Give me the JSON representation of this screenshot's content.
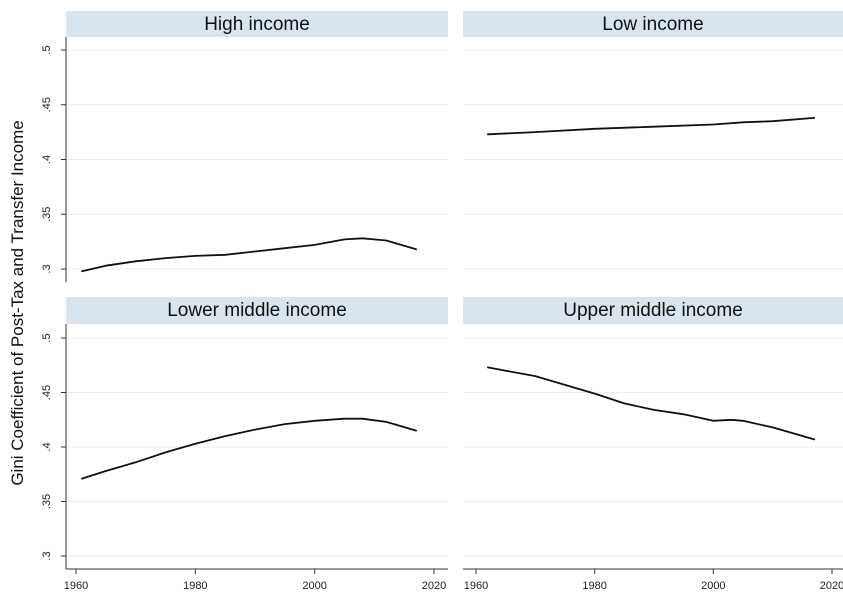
{
  "chart_data": {
    "type": "line",
    "layout": "2x2 small multiples (Stata style)",
    "ylabel": "Gini Coefficient of Post-Tax and Transfer Income",
    "ylim": [
      0.3,
      0.5
    ],
    "yticks": [
      ".3",
      ".35",
      ".4",
      ".45",
      ".5"
    ],
    "ytick_values": [
      0.3,
      0.35,
      0.4,
      0.45,
      0.5
    ],
    "xlim": [
      1960,
      2020
    ],
    "xticks": [
      "1960",
      "1980",
      "2000",
      "2020"
    ],
    "xtick_values": [
      1960,
      1980,
      2000,
      2020
    ],
    "grid": true,
    "colors": {
      "strip": "#d9e5ee",
      "line": "#111111",
      "grid": "#e8eef2",
      "axis": "#333333"
    },
    "panels": [
      {
        "title": "High income",
        "x": [
          1961,
          1965,
          1970,
          1975,
          1980,
          1985,
          1990,
          1995,
          2000,
          2005,
          2008,
          2012,
          2017
        ],
        "y": [
          0.298,
          0.303,
          0.307,
          0.31,
          0.312,
          0.313,
          0.316,
          0.319,
          0.322,
          0.327,
          0.328,
          0.326,
          0.318
        ]
      },
      {
        "title": "Low income",
        "x": [
          1962,
          1970,
          1980,
          1990,
          2000,
          2005,
          2010,
          2017
        ],
        "y": [
          0.423,
          0.425,
          0.428,
          0.43,
          0.432,
          0.434,
          0.435,
          0.438
        ]
      },
      {
        "title": "Lower middle income",
        "x": [
          1961,
          1965,
          1970,
          1975,
          1980,
          1985,
          1990,
          1995,
          2000,
          2005,
          2008,
          2012,
          2017
        ],
        "y": [
          0.371,
          0.378,
          0.386,
          0.395,
          0.403,
          0.41,
          0.416,
          0.421,
          0.424,
          0.426,
          0.426,
          0.423,
          0.415
        ]
      },
      {
        "title": "Upper middle income",
        "x": [
          1962,
          1965,
          1970,
          1975,
          1980,
          1985,
          1990,
          1995,
          2000,
          2003,
          2005,
          2010,
          2017
        ],
        "y": [
          0.473,
          0.47,
          0.465,
          0.457,
          0.449,
          0.44,
          0.434,
          0.43,
          0.424,
          0.425,
          0.424,
          0.418,
          0.407
        ]
      }
    ]
  }
}
